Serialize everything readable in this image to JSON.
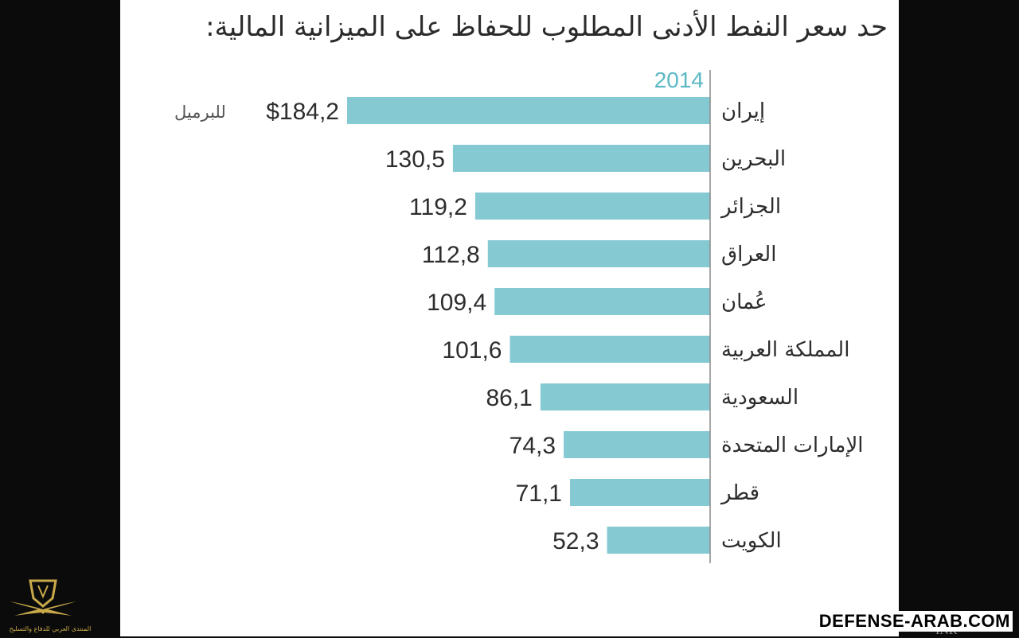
{
  "title": "حد سعر النفط الأدنى المطلوب للحفاظ على الميزانية المالية:",
  "watermark": "DEFENSE-ARAB.COM",
  "logo_text": "المنتدى العربي للدفاع والتسليح",
  "source_mark": "INR",
  "colors": {
    "bar": "#85cad3",
    "year": "#5bb8c4",
    "axis": "#8a8a8a"
  },
  "chart_data": {
    "type": "bar",
    "orientation": "horizontal",
    "year": "2014",
    "unit_note": "للبرميل",
    "categories": [
      "إيران",
      "البحرين",
      "الجزائر",
      "العراق",
      "عُمان",
      "المملكة العربية",
      "السعودية",
      "الإمارات المتحدة",
      "قطر",
      "الكويت"
    ],
    "values": [
      184.2,
      130.5,
      119.2,
      112.8,
      109.4,
      101.6,
      86.1,
      74.3,
      71.1,
      52.3
    ],
    "value_labels": [
      "$184,2",
      "130,5",
      "119,2",
      "112,8",
      "109,4",
      "101,6",
      "86,1",
      "74,3",
      "71,1",
      "52,3"
    ],
    "xlim": [
      0,
      184.2
    ],
    "grid": false,
    "legend": "none"
  }
}
